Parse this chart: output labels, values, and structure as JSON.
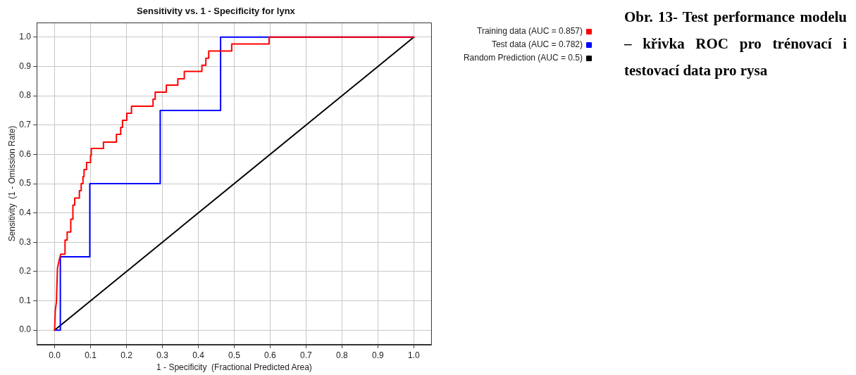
{
  "chart_data": {
    "type": "line",
    "title": "Sensitivity vs. 1 - Specificity for lynx",
    "xlabel": "1 - Specificity  (Fractional Predicted Area)",
    "ylabel": "Sensitivity  (1 - Omission Rate)",
    "annotations": [
      "Obr. 13- Test performance modelu – křivka ROC pro trénovací i testovací data pro rysa"
    ],
    "series": [
      {
        "name": "Training data (AUC = 0.857)",
        "color": "#ff0000",
        "x": [
          0,
          0.002,
          0.005,
          0.008,
          0.012,
          0.017,
          0.029,
          0.029,
          0.035,
          0.035,
          0.045,
          0.045,
          0.051,
          0.051,
          0.056,
          0.056,
          0.069,
          0.069,
          0.074,
          0.074,
          0.079,
          0.079,
          0.082,
          0.082,
          0.089,
          0.089,
          0.1,
          0.1,
          0.102,
          0.102,
          0.136,
          0.136,
          0.172,
          0.172,
          0.184,
          0.184,
          0.189,
          0.189,
          0.201,
          0.201,
          0.214,
          0.214,
          0.274,
          0.274,
          0.28,
          0.28,
          0.311,
          0.311,
          0.343,
          0.343,
          0.361,
          0.361,
          0.41,
          0.41,
          0.421,
          0.421,
          0.429,
          0.429,
          0.493,
          0.493,
          0.597,
          0.597,
          1
        ],
        "values": [
          0,
          0.068,
          0.095,
          0.211,
          0.235,
          0.259,
          0.259,
          0.307,
          0.307,
          0.335,
          0.335,
          0.379,
          0.379,
          0.427,
          0.427,
          0.451,
          0.451,
          0.476,
          0.476,
          0.5,
          0.5,
          0.524,
          0.524,
          0.548,
          0.548,
          0.572,
          0.572,
          0.596,
          0.596,
          0.62,
          0.62,
          0.642,
          0.642,
          0.668,
          0.668,
          0.692,
          0.692,
          0.716,
          0.716,
          0.74,
          0.74,
          0.764,
          0.764,
          0.788,
          0.788,
          0.812,
          0.812,
          0.836,
          0.836,
          0.858,
          0.858,
          0.883,
          0.883,
          0.904,
          0.904,
          0.928,
          0.928,
          0.953,
          0.953,
          0.977,
          0.977,
          1,
          1
        ]
      },
      {
        "name": "Test data (AUC = 0.782)",
        "color": "#0000ff",
        "x": [
          0,
          0.016,
          0.016,
          0.098,
          0.098,
          0.294,
          0.294,
          0.462,
          0.462,
          1
        ],
        "values": [
          0,
          0,
          0.25,
          0.25,
          0.5,
          0.5,
          0.75,
          0.75,
          1,
          1
        ]
      },
      {
        "name": "Random Prediction (AUC = 0.5)",
        "color": "#000000",
        "x": [
          0,
          1
        ],
        "values": [
          0,
          1
        ]
      }
    ],
    "xlim": [
      -0.05,
      1.05
    ],
    "ylim": [
      -0.05,
      1.05
    ],
    "xticks": [
      {
        "value": 0,
        "label": "0.0"
      },
      0.1,
      0.2,
      0.3,
      0.4,
      0.5,
      0.6,
      0.7,
      0.8,
      0.9,
      {
        "value": 1,
        "label": "1.0"
      }
    ],
    "yticks": [
      {
        "value": 0,
        "label": "0.0"
      },
      0.1,
      0.2,
      0.3,
      0.4,
      0.5,
      0.6,
      0.7,
      0.8,
      0.9,
      {
        "value": 1,
        "label": "1.0"
      }
    ],
    "grid": true,
    "legend": "top right",
    "marker": "none",
    "line_style": "solid"
  }
}
